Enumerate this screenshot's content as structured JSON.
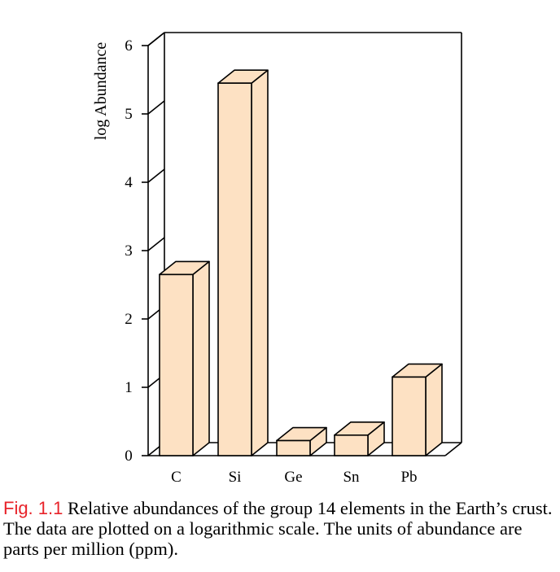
{
  "chart_data": {
    "type": "bar",
    "categories": [
      "C",
      "Si",
      "Ge",
      "Sn",
      "Pb"
    ],
    "values": [
      2.65,
      5.45,
      0.22,
      0.3,
      1.15
    ],
    "title": "",
    "xlabel": "",
    "ylabel": "log Abundance",
    "ylim": [
      0,
      6
    ],
    "yticks": [
      "0",
      "1",
      "2",
      "3",
      "4",
      "5",
      "6"
    ],
    "bar_color": "#fde1c3",
    "style": "3d",
    "grid": false
  },
  "caption": {
    "label": "Fig. 1.1",
    "text": " Relative abundances of the group 14 elements in the Earth’s crust. The data are plotted on a logarithmic scale. The units of abundance are parts per million (ppm)."
  }
}
